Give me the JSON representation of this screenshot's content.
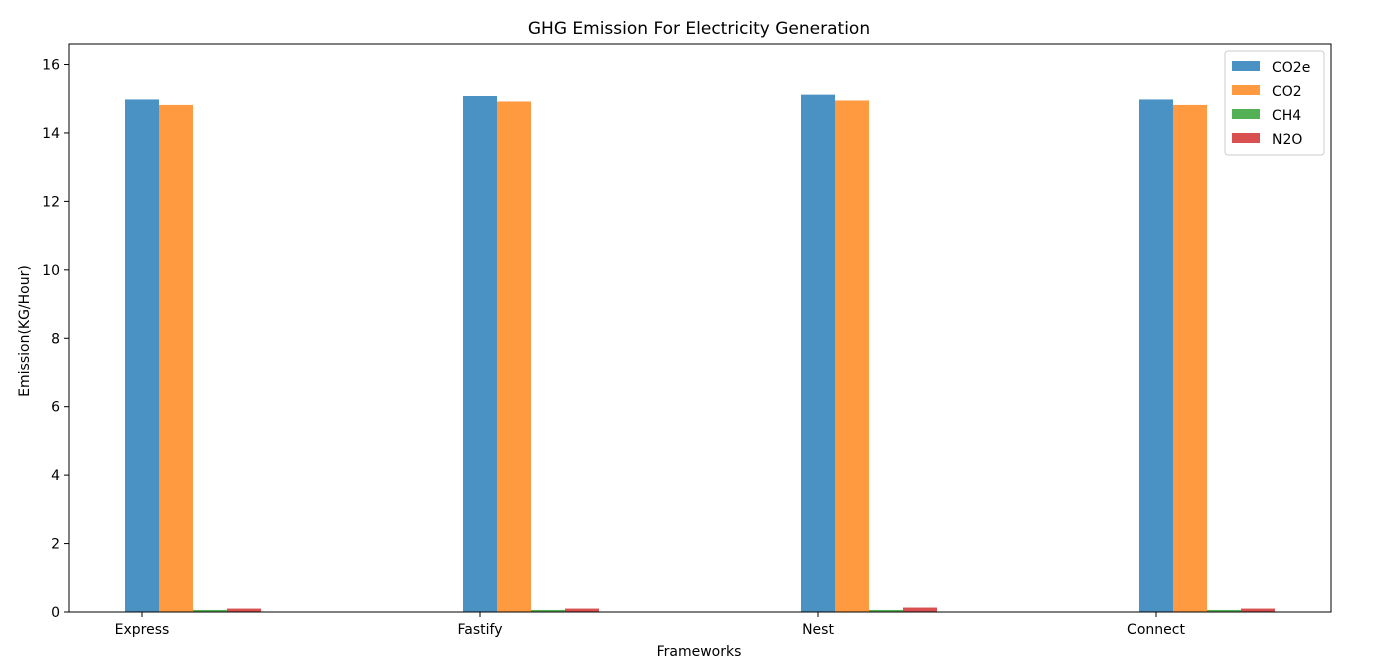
{
  "chart_data": {
    "type": "bar",
    "title": "GHG Emission For Electricity Generation",
    "xlabel": "Frameworks",
    "ylabel": "Emission(KG/Hour)",
    "categories": [
      "Express",
      "Fastify",
      "Nest",
      "Connect"
    ],
    "series": [
      {
        "name": "CO2e",
        "color": "#4b92c4",
        "values": [
          14.98,
          15.08,
          15.12,
          14.98
        ]
      },
      {
        "name": "CO2",
        "color": "#ff9a40",
        "values": [
          14.82,
          14.92,
          14.95,
          14.82
        ]
      },
      {
        "name": "CH4",
        "color": "#54b054",
        "values": [
          0.06,
          0.06,
          0.06,
          0.06
        ]
      },
      {
        "name": "N2O",
        "color": "#d95050",
        "values": [
          0.1,
          0.1,
          0.13,
          0.1
        ]
      }
    ],
    "ylim": [
      0,
      16.6
    ],
    "yticks": [
      0,
      2,
      4,
      6,
      8,
      10,
      12,
      14,
      16
    ],
    "grid": false,
    "legend_position": "top-right"
  }
}
